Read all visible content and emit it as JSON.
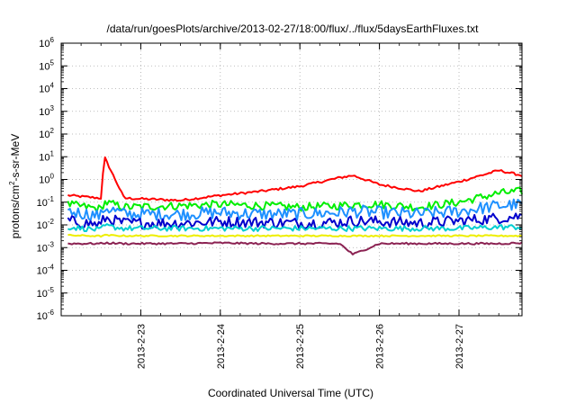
{
  "chart_data": {
    "type": "line",
    "title": "/data/run/goesPlots/archive/2013-02-27/18:00/flux/../flux/5daysEarthFluxes.txt",
    "xlabel": "Coordinated Universal Time (UTC)",
    "ylabel": "protons/cm2-s-sr-MeV",
    "yscale": "log",
    "ylim": [
      1e-06,
      1000000.0
    ],
    "xlim_days": [
      2013.0222,
      2013.0277
    ],
    "grid": true,
    "x_tick_labels": [
      "2013-2-23",
      "2013-2-24",
      "2013-2-25",
      "2013-2-26",
      "2013-2-27"
    ],
    "y_tick_labels": [
      {
        "base": "10",
        "exp": "-6"
      },
      {
        "base": "10",
        "exp": "-5"
      },
      {
        "base": "10",
        "exp": "-4"
      },
      {
        "base": "10",
        "exp": "-3"
      },
      {
        "base": "10",
        "exp": "-2"
      },
      {
        "base": "10",
        "exp": "-1"
      },
      {
        "base": "10",
        "exp": "0"
      },
      {
        "base": "10",
        "exp": "1"
      },
      {
        "base": "10",
        "exp": "2"
      },
      {
        "base": "10",
        "exp": "3"
      },
      {
        "base": "10",
        "exp": "4"
      },
      {
        "base": "10",
        "exp": "5"
      },
      {
        "base": "10",
        "exp": "6"
      }
    ],
    "x_dates": [
      "2013-02-22 02:00",
      "2013-02-22 12:00",
      "2013-02-22 13:00",
      "2013-02-22 19:00",
      "2013-02-23 12:00",
      "2013-02-24 00:00",
      "2013-02-24 12:00",
      "2013-02-25 00:00",
      "2013-02-25 12:00",
      "2013-02-25 16:00",
      "2013-02-26 00:00",
      "2013-02-26 12:00",
      "2013-02-27 00:00",
      "2013-02-27 12:00",
      "2013-02-27 19:00"
    ],
    "series": [
      {
        "color": "#ff0000",
        "values": [
          0.2,
          0.15,
          10,
          0.15,
          0.12,
          0.2,
          0.3,
          0.5,
          1.2,
          1.5,
          0.6,
          0.3,
          0.8,
          2.5,
          1.5
        ]
      },
      {
        "color": "#00ee00",
        "values": [
          0.08,
          0.05,
          0.1,
          0.06,
          0.07,
          0.08,
          0.07,
          0.06,
          0.07,
          0.08,
          0.08,
          0.06,
          0.1,
          0.25,
          0.3
        ]
      },
      {
        "color": "#1e90ff",
        "values": [
          0.04,
          0.025,
          0.06,
          0.03,
          0.03,
          0.035,
          0.03,
          0.03,
          0.035,
          0.04,
          0.035,
          0.03,
          0.04,
          0.07,
          0.08
        ]
      },
      {
        "color": "#0000cd",
        "values": [
          0.015,
          0.01,
          0.02,
          0.012,
          0.012,
          0.014,
          0.013,
          0.012,
          0.013,
          0.015,
          0.014,
          0.012,
          0.015,
          0.02,
          0.025
        ]
      },
      {
        "color": "#00ced1",
        "values": [
          0.008,
          0.006,
          0.009,
          0.007,
          0.007,
          0.007,
          0.007,
          0.007,
          0.007,
          0.007,
          0.007,
          0.007,
          0.007,
          0.008,
          0.008
        ]
      },
      {
        "color": "#eeee00",
        "values": [
          0.0035,
          0.0032,
          0.0035,
          0.0033,
          0.0033,
          0.0033,
          0.0033,
          0.0033,
          0.0033,
          0.0033,
          0.0033,
          0.0033,
          0.0033,
          0.0033,
          0.0033
        ]
      },
      {
        "color": "#8b2252",
        "values": [
          0.0015,
          0.0015,
          0.0016,
          0.0015,
          0.0015,
          0.0016,
          0.0015,
          0.0015,
          0.0015,
          0.0005,
          0.0015,
          0.0015,
          0.0015,
          0.0015,
          0.0016
        ]
      }
    ]
  }
}
